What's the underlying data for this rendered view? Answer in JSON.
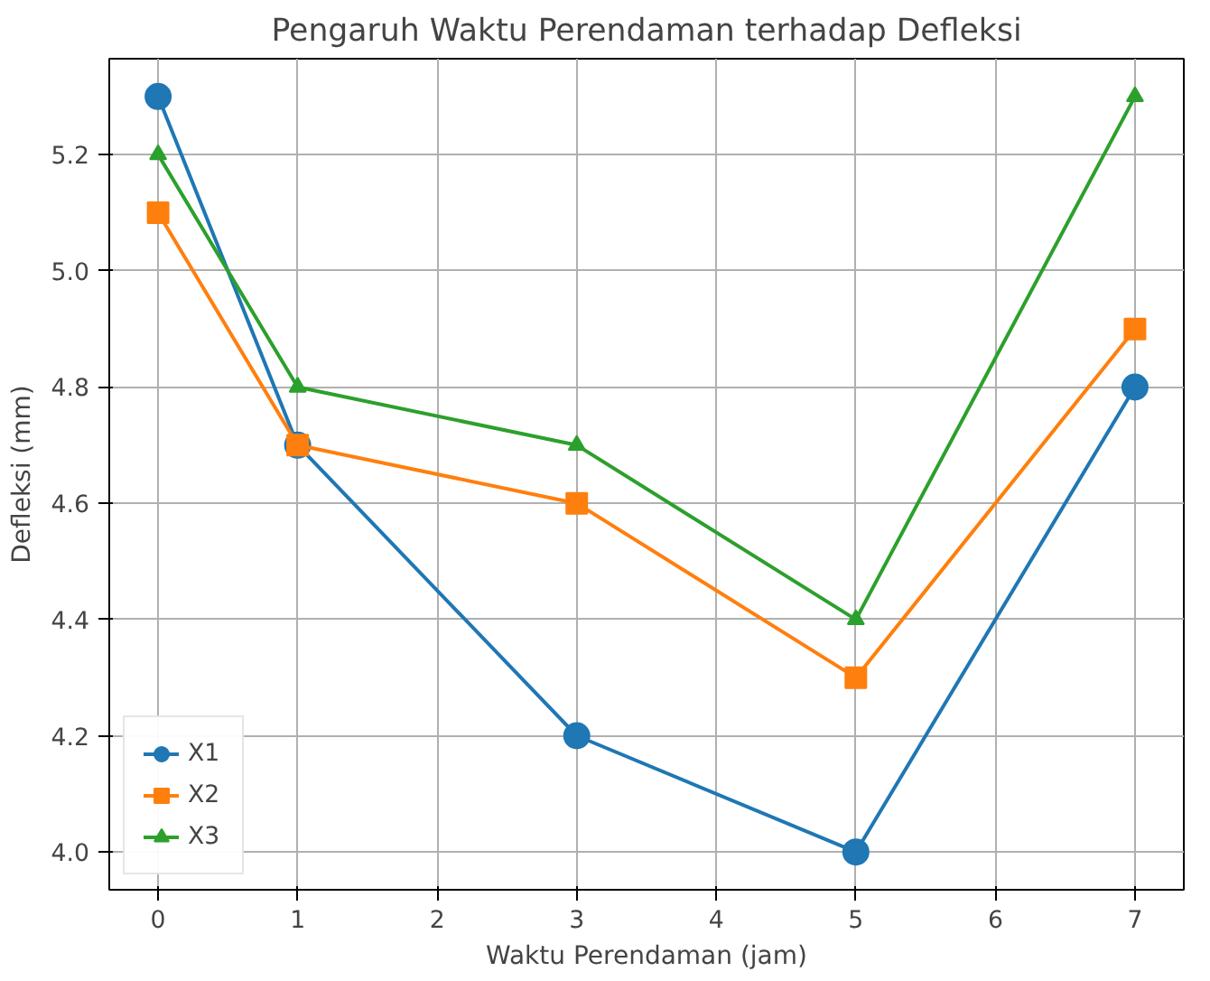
{
  "chart_data": {
    "type": "line",
    "title": "Pengaruh Waktu Perendaman terhadap Defleksi",
    "xlabel": "Waktu Perendaman (jam)",
    "ylabel": "Defleksi (mm)",
    "x": [
      0,
      1,
      3,
      5,
      7
    ],
    "series": [
      {
        "name": "X1",
        "color": "#1f77b4",
        "marker": "circle",
        "values": [
          5.3,
          4.7,
          4.2,
          4.0,
          4.8
        ]
      },
      {
        "name": "X2",
        "color": "#ff7f0e",
        "marker": "square",
        "values": [
          5.1,
          4.7,
          4.6,
          4.3,
          4.9
        ]
      },
      {
        "name": "X3",
        "color": "#2ca02c",
        "marker": "triangle",
        "values": [
          5.2,
          4.8,
          4.7,
          4.4,
          5.3
        ]
      }
    ],
    "xlim": [
      -0.35,
      7.35
    ],
    "ylim": [
      3.935,
      5.365
    ],
    "xticks": [
      0,
      1,
      2,
      3,
      4,
      5,
      6,
      7
    ],
    "yticks": [
      {
        "value": 4.0,
        "label": "4.0"
      },
      {
        "value": 4.2,
        "label": "4.2"
      },
      {
        "value": 4.4,
        "label": "4.4"
      },
      {
        "value": 4.6,
        "label": "4.6"
      },
      {
        "value": 4.8,
        "label": "4.8"
      },
      {
        "value": 5.0,
        "label": "5.0"
      },
      {
        "value": 5.2,
        "label": "5.2"
      }
    ],
    "grid": true,
    "legend": "bottom left",
    "line_style": "solid"
  }
}
